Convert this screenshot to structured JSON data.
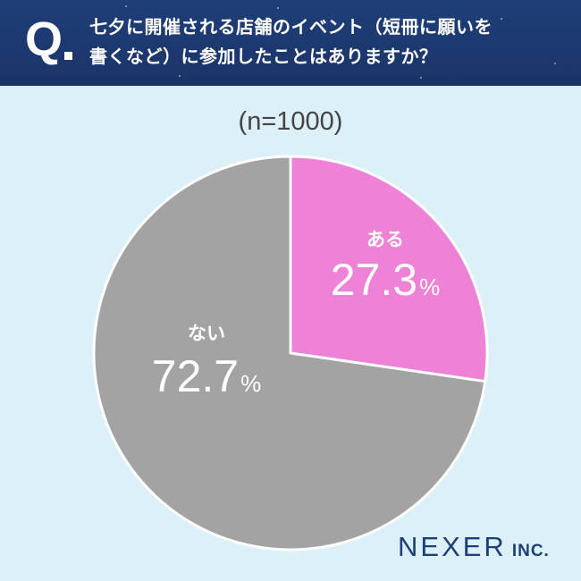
{
  "header": {
    "q_mark": "Q",
    "question_line1": "七夕に開催される店舗のイベント（短冊に願いを",
    "question_line2": "書くなど）に参加したことはありますか？"
  },
  "sample_size_label": "(n=1000)",
  "logo": {
    "main": "NEXER",
    "sub": "INC."
  },
  "colors": {
    "header_bg": "#1f3f78",
    "page_bg": "#dcf0f8",
    "yes_slice": "#ee82d6",
    "no_slice": "#a3a3a3"
  },
  "chart_data": {
    "type": "pie",
    "title": "七夕に開催される店舗のイベント（短冊に願いを書くなど）に参加したことはありますか？",
    "n": 1000,
    "slices": [
      {
        "label": "ある",
        "value": 27.3,
        "display": "27.3",
        "unit": "%",
        "color": "#ee82d6"
      },
      {
        "label": "ない",
        "value": 72.7,
        "display": "72.7",
        "unit": "%",
        "color": "#a3a3a3"
      }
    ]
  }
}
